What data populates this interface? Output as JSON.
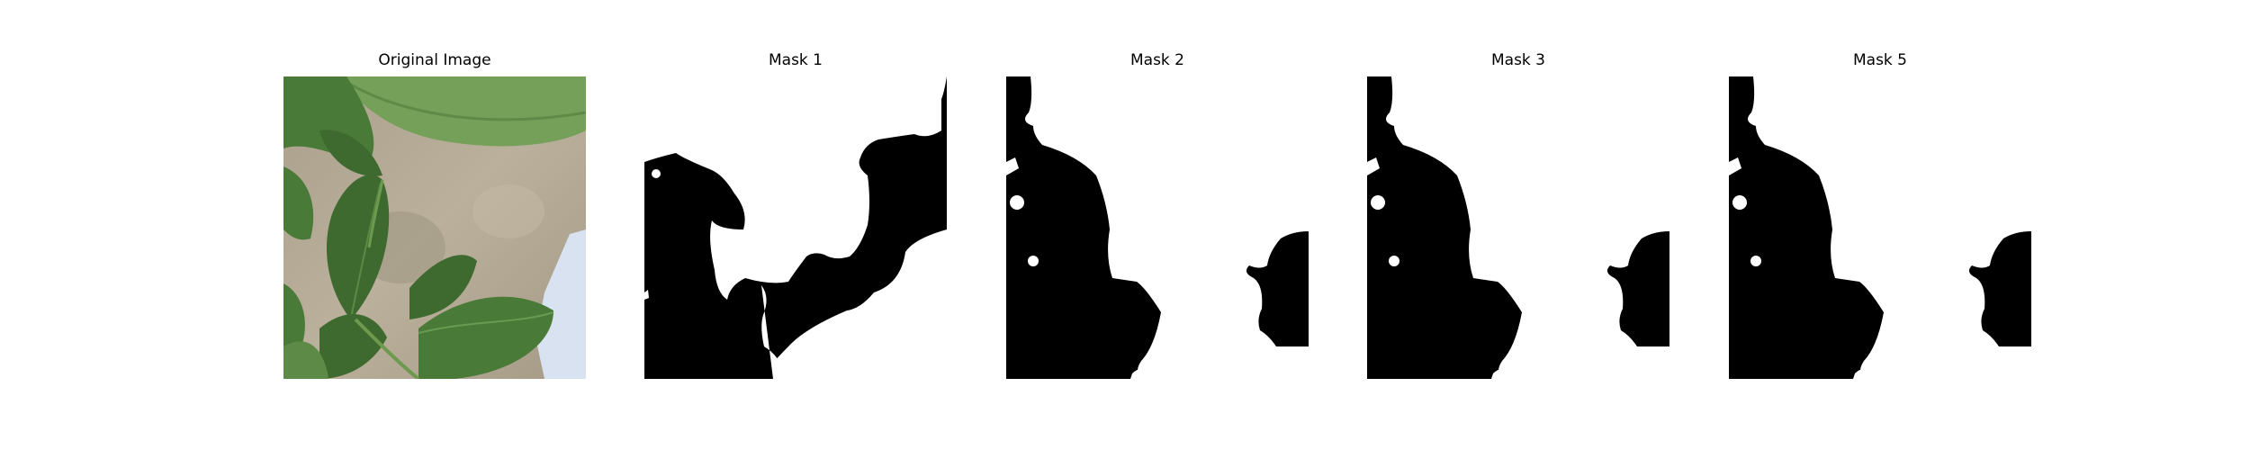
{
  "figure": {
    "panels": [
      {
        "title": "Original Image",
        "content": "photo"
      },
      {
        "title": "Mask 1",
        "content": "mask-1"
      },
      {
        "title": "Mask 2",
        "content": "mask-2"
      },
      {
        "title": "Mask 3",
        "content": "mask-3"
      },
      {
        "title": "Mask 5",
        "content": "mask-5"
      }
    ]
  },
  "colors": {
    "background": "#ffffff",
    "mask_foreground": "#ffffff",
    "mask_background": "#000000",
    "leaf_dark": "#3f6a2f",
    "leaf_light": "#74a05a",
    "ground": "#b2a792",
    "container": "#d8e2f0"
  }
}
